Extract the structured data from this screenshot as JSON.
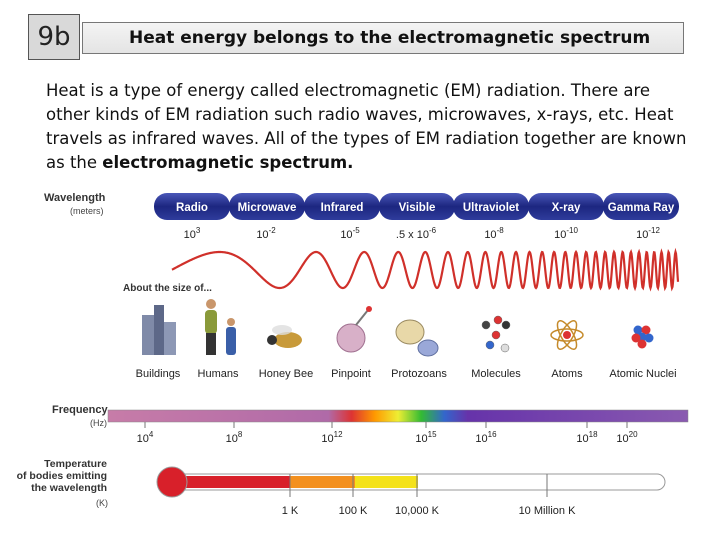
{
  "slide": {
    "number": "9b",
    "title": "Heat energy belongs to the electromagnetic spectrum",
    "body": {
      "text": "Heat is a type of energy called electromagnetic (EM) radiation. There are other kinds of EM radiation such radio waves, microwaves, x-rays, etc. Heat travels as infrared waves. All of the types of EM radiation together are known as the ",
      "bold": "electromagnetic spectrum."
    }
  },
  "spectrum": {
    "wavelength_label": "Wavelength",
    "wavelength_unit": "(meters)",
    "bands": [
      "Radio",
      "Microwave",
      "Infrared",
      "Visible",
      "Ultraviolet",
      "X-ray",
      "Gamma Ray"
    ],
    "wavelengths": [
      {
        "base": "10",
        "exp": "3"
      },
      {
        "base": "10",
        "exp": "-2"
      },
      {
        "base": "10",
        "exp": "-5"
      },
      {
        "base": ".5 x 10",
        "exp": "-6"
      },
      {
        "base": "10",
        "exp": "-8"
      },
      {
        "base": "10",
        "exp": "-10"
      },
      {
        "base": "10",
        "exp": "-12"
      }
    ],
    "size_label": "About the size of...",
    "objects": [
      "Buildings",
      "Humans",
      "Honey Bee",
      "Pinpoint",
      "Protozoans",
      "Molecules",
      "Atoms",
      "Atomic Nuclei"
    ],
    "frequency_label": "Frequency",
    "frequency_unit": "(Hz)",
    "frequencies": [
      {
        "base": "10",
        "exp": "4"
      },
      {
        "base": "10",
        "exp": "8"
      },
      {
        "base": "10",
        "exp": "12"
      },
      {
        "base": "10",
        "exp": "15"
      },
      {
        "base": "10",
        "exp": "16"
      },
      {
        "base": "10",
        "exp": "18"
      },
      {
        "base": "10",
        "exp": "20"
      }
    ],
    "temperature_label": [
      "Temperature",
      "of bodies emitting",
      "the wavelength"
    ],
    "temperature_unit": "(K)",
    "temperatures": [
      "1 K",
      "100 K",
      "10,000 K",
      "10 Million K"
    ]
  }
}
